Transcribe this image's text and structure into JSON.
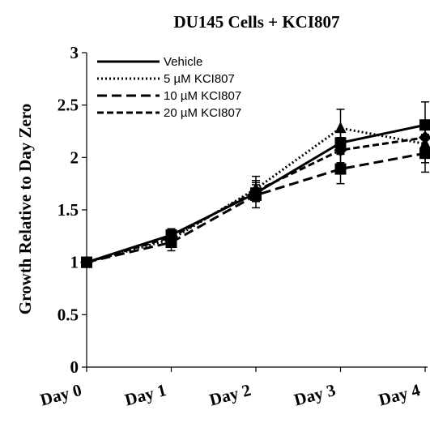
{
  "chart_data": {
    "type": "line",
    "title": "DU145 Cells + KCI807",
    "xlabel": "",
    "ylabel": "Growth Relative to Day Zero",
    "categories": [
      "Day 0",
      "Day 1",
      "Day 2",
      "Day 3",
      "Day 4"
    ],
    "ylim": [
      0,
      3
    ],
    "yticks": [
      "0",
      "0.5",
      "1",
      "1.5",
      "2",
      "2.5",
      "3"
    ],
    "legend_position": "top-left",
    "grid": false,
    "series": [
      {
        "name": "Vehicle",
        "values": [
          1.0,
          1.26,
          1.66,
          2.14,
          2.31
        ],
        "errors": [
          0.02,
          0.06,
          0.08,
          0.1,
          0.22
        ],
        "style": "solid",
        "marker": "square",
        "color": "#000000"
      },
      {
        "name": "5 µM KCI807",
        "values": [
          1.0,
          1.22,
          1.7,
          2.28,
          2.13
        ],
        "errors": [
          0.02,
          0.05,
          0.12,
          0.18,
          0.18
        ],
        "style": "dotted",
        "marker": "triangle",
        "color": "#000000"
      },
      {
        "name": "10 µM KCI807",
        "values": [
          1.0,
          1.19,
          1.64,
          1.89,
          2.04
        ],
        "errors": [
          0.02,
          0.08,
          0.12,
          0.14,
          0.18
        ],
        "style": "dashed",
        "marker": "square",
        "color": "#000000"
      },
      {
        "name": "20 µM KCI807",
        "values": [
          1.0,
          1.24,
          1.68,
          2.07,
          2.19
        ],
        "errors": [
          0.02,
          0.06,
          0.1,
          0.12,
          0.16
        ],
        "style": "shortdash",
        "marker": "diamond",
        "color": "#000000"
      }
    ]
  }
}
